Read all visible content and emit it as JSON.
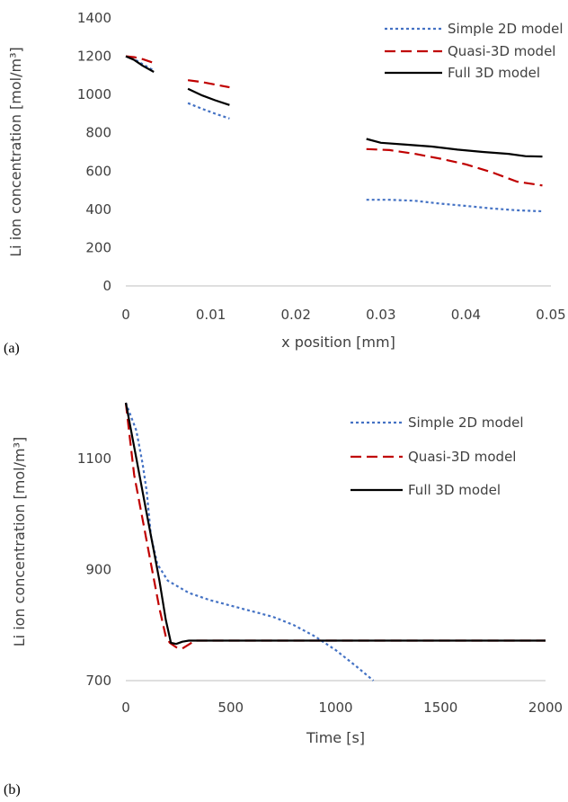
{
  "colors": {
    "simple_2d": "#4472C4",
    "quasi_3d": "#C00000",
    "full_3d": "#000000",
    "axis": "#BFBFBF",
    "text": "#404040"
  },
  "chart_data": [
    {
      "type": "line",
      "panel_label": "(a)",
      "xlabel": "x position [mm]",
      "ylabel": "Li ion concentration [mol/m³]",
      "xlim": [
        0,
        0.05
      ],
      "ylim": [
        0,
        1400
      ],
      "xticks": [
        0,
        0.01,
        0.02,
        0.03,
        0.04,
        0.05
      ],
      "xtick_labels": [
        "0",
        "0.01",
        "0.02",
        "0.03",
        "0.04",
        "0.05"
      ],
      "yticks": [
        0,
        200,
        400,
        600,
        800,
        1000,
        1200,
        1400
      ],
      "ytick_labels": [
        "0",
        "200",
        "400",
        "600",
        "800",
        "1000",
        "1200",
        "1400"
      ],
      "grid": false,
      "legend_position": "top-right",
      "series": [
        {
          "name": "Simple 2D model",
          "color_key": "simple_2d",
          "style": "dotted",
          "segments": [
            [
              [
                0,
                1200
              ],
              [
                0.001,
                1185
              ],
              [
                0.002,
                1158
              ],
              [
                0.0033,
                1125
              ]
            ],
            [
              [
                0.0073,
                955
              ],
              [
                0.009,
                925
              ],
              [
                0.0105,
                900
              ],
              [
                0.0122,
                875
              ]
            ],
            [
              [
                0.0283,
                450
              ],
              [
                0.031,
                450
              ],
              [
                0.034,
                445
              ],
              [
                0.037,
                430
              ],
              [
                0.04,
                418
              ],
              [
                0.043,
                405
              ],
              [
                0.046,
                395
              ],
              [
                0.049,
                390
              ]
            ]
          ]
        },
        {
          "name": "Quasi-3D model",
          "color_key": "quasi_3d",
          "style": "dashed",
          "segments": [
            [
              [
                0,
                1200
              ],
              [
                0.001,
                1195
              ],
              [
                0.002,
                1185
              ],
              [
                0.0033,
                1165
              ]
            ],
            [
              [
                0.0073,
                1075
              ],
              [
                0.009,
                1065
              ],
              [
                0.0105,
                1052
              ],
              [
                0.0122,
                1038
              ]
            ],
            [
              [
                0.0283,
                715
              ],
              [
                0.031,
                710
              ],
              [
                0.034,
                690
              ],
              [
                0.037,
                665
              ],
              [
                0.04,
                635
              ],
              [
                0.043,
                595
              ],
              [
                0.046,
                545
              ],
              [
                0.049,
                525
              ]
            ]
          ]
        },
        {
          "name": "Full 3D model",
          "color_key": "full_3d",
          "style": "solid",
          "segments": [
            [
              [
                0,
                1200
              ],
              [
                0.001,
                1180
              ],
              [
                0.002,
                1150
              ],
              [
                0.0033,
                1118
              ]
            ],
            [
              [
                0.0073,
                1030
              ],
              [
                0.009,
                995
              ],
              [
                0.0105,
                970
              ],
              [
                0.0122,
                945
              ]
            ],
            [
              [
                0.0283,
                768
              ],
              [
                0.03,
                748
              ],
              [
                0.033,
                738
              ],
              [
                0.036,
                728
              ],
              [
                0.039,
                712
              ],
              [
                0.042,
                700
              ],
              [
                0.045,
                690
              ],
              [
                0.047,
                678
              ],
              [
                0.049,
                676
              ]
            ]
          ]
        }
      ]
    },
    {
      "type": "line",
      "panel_label": "(b)",
      "xlabel": "Time [s]",
      "ylabel": "Li ion concentration [mol/m³]",
      "xlim": [
        0,
        2000
      ],
      "ylim": [
        700,
        1200
      ],
      "xticks": [
        0,
        500,
        1000,
        1500,
        2000
      ],
      "xtick_labels": [
        "0",
        "500",
        "1000",
        "1500",
        "2000"
      ],
      "yticks": [
        700,
        900,
        1100
      ],
      "ytick_labels": [
        "700",
        "900",
        "1100"
      ],
      "grid": false,
      "legend_position": "top-right",
      "series": [
        {
          "name": "Simple 2D model",
          "color_key": "simple_2d",
          "style": "dotted",
          "segments": [
            [
              [
                0,
                1200
              ],
              [
                20,
                1180
              ],
              [
                50,
                1150
              ],
              [
                80,
                1090
              ],
              [
                100,
                1040
              ],
              [
                120,
                960
              ],
              [
                150,
                910
              ],
              [
                200,
                880
              ],
              [
                300,
                858
              ],
              [
                400,
                845
              ],
              [
                500,
                835
              ],
              [
                600,
                825
              ],
              [
                700,
                815
              ],
              [
                800,
                800
              ],
              [
                900,
                780
              ],
              [
                1000,
                755
              ],
              [
                1100,
                725
              ],
              [
                1180,
                700
              ]
            ]
          ]
        },
        {
          "name": "Quasi-3D model",
          "color_key": "quasi_3d",
          "style": "dashed",
          "segments": [
            [
              [
                0,
                1200
              ],
              [
                15,
                1150
              ],
              [
                40,
                1070
              ],
              [
                80,
                990
              ],
              [
                120,
                910
              ],
              [
                160,
                830
              ],
              [
                190,
                780
              ],
              [
                210,
                768
              ],
              [
                240,
                760
              ],
              [
                270,
                758
              ],
              [
                300,
                765
              ],
              [
                330,
                772
              ],
              [
                400,
                772
              ],
              [
                500,
                772
              ],
              [
                1000,
                772
              ],
              [
                1500,
                772
              ],
              [
                2000,
                772
              ]
            ]
          ]
        },
        {
          "name": "Full 3D model",
          "color_key": "full_3d",
          "style": "solid",
          "segments": [
            [
              [
                0,
                1200
              ],
              [
                20,
                1160
              ],
              [
                50,
                1100
              ],
              [
                100,
                1000
              ],
              [
                130,
                940
              ],
              [
                160,
                880
              ],
              [
                190,
                810
              ],
              [
                215,
                768
              ],
              [
                240,
                766
              ],
              [
                270,
                770
              ],
              [
                300,
                772
              ],
              [
                400,
                772
              ],
              [
                500,
                772
              ],
              [
                1000,
                772
              ],
              [
                1500,
                772
              ],
              [
                2000,
                772
              ]
            ]
          ]
        }
      ]
    }
  ]
}
